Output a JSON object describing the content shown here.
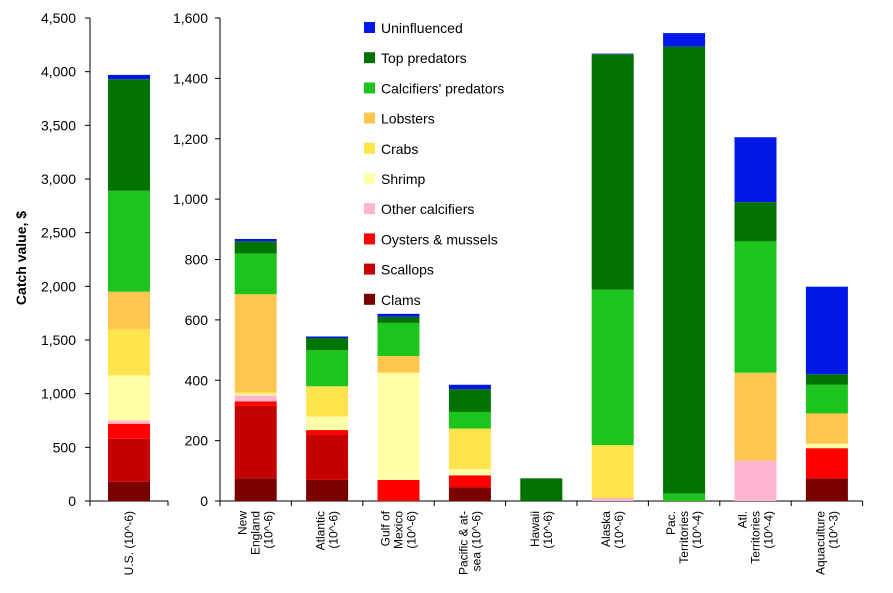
{
  "chart_data": [
    {
      "type": "bar",
      "stacked": true,
      "ylabel": "Catch value, $",
      "ylim": [
        0,
        4500
      ],
      "yticks": [
        "0",
        "500",
        "1,000",
        "1,500",
        "2,000",
        "2,500",
        "3,000",
        "3,500",
        "4,000",
        "4,500"
      ],
      "ytick_values": [
        0,
        500,
        1000,
        1500,
        2000,
        2500,
        3000,
        3500,
        4000,
        4500
      ],
      "categories": [
        [
          "U.S. (10^-6)"
        ]
      ],
      "series": [
        {
          "name": "Clams",
          "color": "#7a0000",
          "values": [
            180
          ]
        },
        {
          "name": "Scallops",
          "color": "#c40000",
          "values": [
            400
          ]
        },
        {
          "name": "Oysters & mussels",
          "color": "#ff0000",
          "values": [
            140
          ]
        },
        {
          "name": "Other calcifiers",
          "color": "#ffb6cc",
          "values": [
            30
          ]
        },
        {
          "name": "Shrimp",
          "color": "#ffffa8",
          "values": [
            420
          ]
        },
        {
          "name": "Crabs",
          "color": "#ffe44d",
          "values": [
            430
          ]
        },
        {
          "name": "Lobsters",
          "color": "#ffc74f",
          "values": [
            350
          ]
        },
        {
          "name": "Calcifiers' predators",
          "color": "#1ec41e",
          "values": [
            940
          ]
        },
        {
          "name": "Top predators",
          "color": "#007200",
          "values": [
            1040
          ]
        },
        {
          "name": "Uninfluenced",
          "color": "#0018e6",
          "values": [
            40
          ]
        }
      ]
    },
    {
      "type": "bar",
      "stacked": true,
      "ylabel": "",
      "ylim": [
        0,
        1600
      ],
      "yticks": [
        "0",
        "200",
        "400",
        "600",
        "800",
        "1,000",
        "1,200",
        "1,400",
        "1,600"
      ],
      "ytick_values": [
        0,
        200,
        400,
        600,
        800,
        1000,
        1200,
        1400,
        1600
      ],
      "categories": [
        [
          "New",
          "England",
          "(10^-6)"
        ],
        [
          "Atlantic",
          "(10^-6)"
        ],
        [
          "Gulf of",
          "Mexico",
          "(10^-6)"
        ],
        [
          "Pacific & at-",
          "sea (10^-6)"
        ],
        [
          "Hawaii",
          "(10^-6)"
        ],
        [
          "Alaska",
          "(10^-6)"
        ],
        [
          "Pac.",
          "Territories",
          "(10^-4)"
        ],
        [
          "Atl.",
          "Territories",
          "(10^-4)"
        ],
        [
          "Aquaculture",
          "(10^-3)"
        ]
      ],
      "series": [
        {
          "name": "Clams",
          "color": "#7a0000",
          "values": [
            75,
            70,
            0,
            45,
            0,
            0,
            0,
            0,
            75
          ]
        },
        {
          "name": "Scallops",
          "color": "#c40000",
          "values": [
            240,
            150,
            0,
            0,
            0,
            0,
            0,
            0,
            0
          ]
        },
        {
          "name": "Oysters & mussels",
          "color": "#ff0000",
          "values": [
            15,
            15,
            70,
            40,
            0,
            0,
            0,
            0,
            100
          ]
        },
        {
          "name": "Other calcifiers",
          "color": "#ffb6cc",
          "values": [
            20,
            0,
            0,
            0,
            0,
            10,
            0,
            135,
            0
          ]
        },
        {
          "name": "Shrimp",
          "color": "#ffffa8",
          "values": [
            5,
            45,
            355,
            20,
            0,
            0,
            0,
            0,
            15
          ]
        },
        {
          "name": "Crabs",
          "color": "#ffe44d",
          "values": [
            5,
            100,
            0,
            135,
            0,
            175,
            0,
            0,
            0
          ]
        },
        {
          "name": "Lobsters",
          "color": "#ffc74f",
          "values": [
            325,
            0,
            55,
            0,
            0,
            0,
            0,
            290,
            100
          ]
        },
        {
          "name": "Calcifiers' predators",
          "color": "#1ec41e",
          "values": [
            135,
            120,
            110,
            55,
            0,
            515,
            25,
            435,
            95
          ]
        },
        {
          "name": "Top predators",
          "color": "#007200",
          "values": [
            40,
            40,
            20,
            75,
            75,
            780,
            1480,
            130,
            35
          ]
        },
        {
          "name": "Uninfluenced",
          "color": "#0018e6",
          "values": [
            8,
            5,
            10,
            15,
            0,
            2,
            45,
            215,
            290
          ]
        }
      ]
    }
  ],
  "legend": [
    {
      "label": "Uninfluenced",
      "color": "#0018e6"
    },
    {
      "label": "Top predators",
      "color": "#007200"
    },
    {
      "label": "Calcifiers' predators",
      "color": "#1ec41e"
    },
    {
      "label": "Lobsters",
      "color": "#ffc74f"
    },
    {
      "label": "Crabs",
      "color": "#ffe44d"
    },
    {
      "label": "Shrimp",
      "color": "#ffffa8"
    },
    {
      "label": "Other calcifiers",
      "color": "#ffb6cc"
    },
    {
      "label": "Oysters & mussels",
      "color": "#ff0000"
    },
    {
      "label": "Scallops",
      "color": "#c40000"
    },
    {
      "label": "Clams",
      "color": "#7a0000"
    }
  ]
}
